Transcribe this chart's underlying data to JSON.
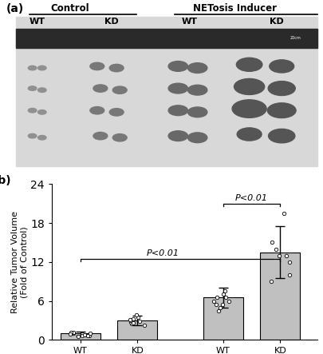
{
  "panel_a_placeholder": true,
  "bar_means": [
    1.0,
    3.0,
    6.5,
    13.5
  ],
  "bar_errors": [
    0.3,
    0.7,
    1.5,
    4.0
  ],
  "bar_color": "#C0C0C0",
  "bar_edge_color": "#000000",
  "ylim": [
    0,
    24
  ],
  "yticks": [
    0,
    6,
    12,
    18,
    24
  ],
  "ylabel_line1": "Relative Tumor Volume",
  "ylabel_line2": "(Fold of Control)",
  "group_labels": [
    "WT",
    "KD",
    "WT",
    "KD"
  ],
  "group_positions": [
    0.5,
    1.5,
    3.0,
    4.0
  ],
  "bar_width": 0.7,
  "bracket1_label": "P<0.01",
  "bracket2_label": "P<0.01",
  "category_labels": [
    "Control",
    "NETosis Inducer"
  ],
  "category_centers": [
    1.0,
    3.5
  ],
  "panel_label_a": "(a)",
  "panel_label_b": "(b)",
  "dot_data": {
    "WT_control": [
      0.5,
      0.7,
      0.8,
      0.9,
      1.0,
      1.1,
      1.2,
      0.6,
      0.7,
      0.8,
      0.9,
      1.0
    ],
    "KD_control": [
      2.2,
      2.5,
      2.8,
      3.0,
      3.2,
      3.5,
      3.8,
      2.6,
      2.9,
      3.1
    ],
    "WT_netosis": [
      4.5,
      5.0,
      5.5,
      6.0,
      6.5,
      7.0,
      7.5,
      6.0,
      6.5,
      5.5
    ],
    "KD_netosis": [
      9.0,
      10.0,
      12.0,
      13.0,
      14.0,
      15.0,
      19.5,
      13.0
    ]
  },
  "figure_width": 4.06,
  "figure_height": 4.43,
  "dpi": 100
}
